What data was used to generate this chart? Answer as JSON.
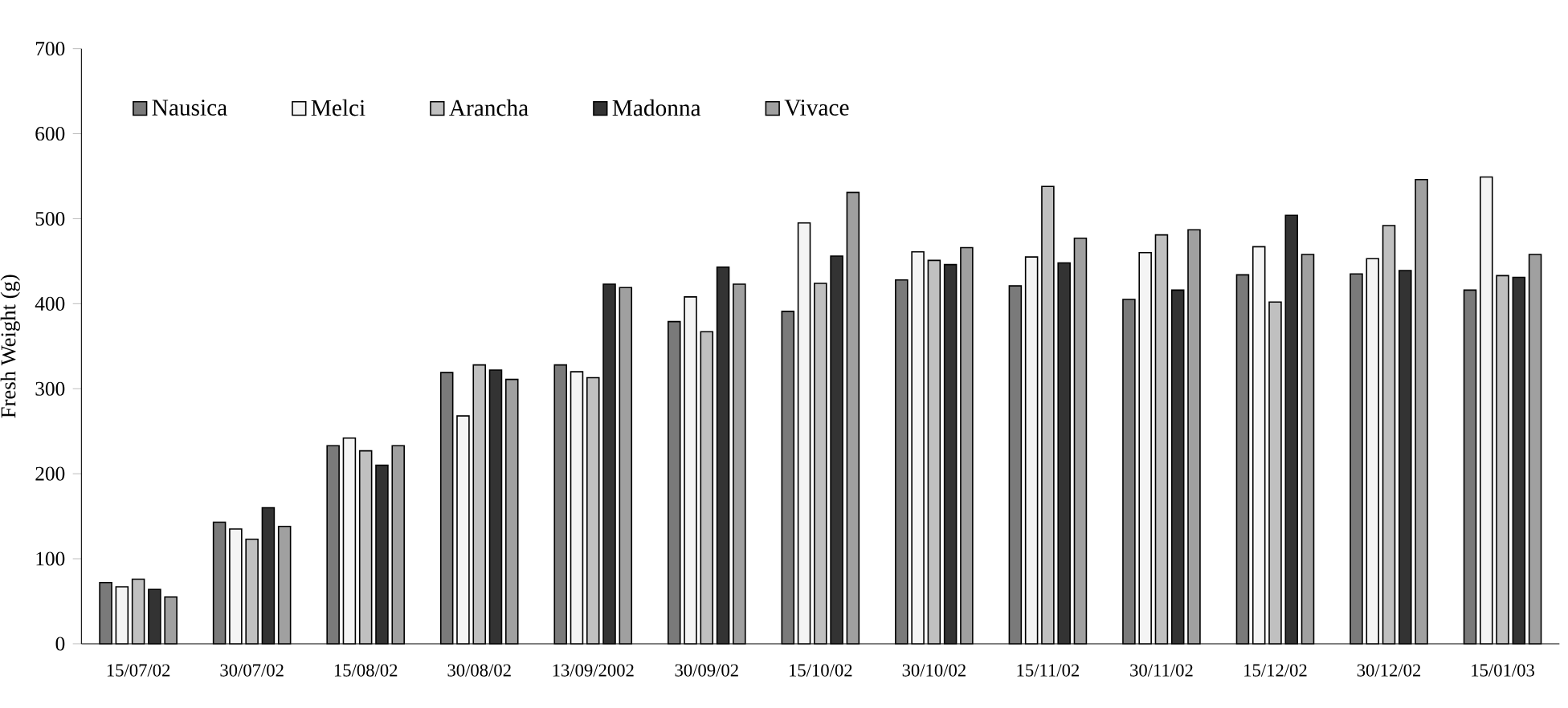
{
  "chart_data": {
    "type": "bar",
    "ylabel": "Fresh Weight (g)",
    "categories": [
      "15/07/02",
      "30/07/02",
      "15/08/02",
      "30/08/02",
      "13/09/2002",
      "30/09/02",
      "15/10/02",
      "30/10/02",
      "15/11/02",
      "30/11/02",
      "15/12/02",
      "30/12/02",
      "15/01/03"
    ],
    "series": [
      {
        "name": "Nausica",
        "color": "#7a7a7a",
        "values": [
          72,
          143,
          233,
          319,
          328,
          379,
          391,
          428,
          421,
          405,
          434,
          435,
          416
        ]
      },
      {
        "name": "Melci",
        "color": "#f4f4f4",
        "values": [
          67,
          135,
          242,
          268,
          320,
          408,
          495,
          461,
          455,
          460,
          467,
          453,
          549
        ]
      },
      {
        "name": "Arancha",
        "color": "#c0c0c0",
        "values": [
          76,
          123,
          227,
          328,
          313,
          367,
          424,
          451,
          538,
          481,
          402,
          492,
          433
        ]
      },
      {
        "name": "Madonna",
        "color": "#333333",
        "values": [
          64,
          160,
          210,
          322,
          423,
          443,
          456,
          446,
          448,
          416,
          504,
          439,
          431
        ]
      },
      {
        "name": "Vivace",
        "color": "#a0a0a0",
        "values": [
          55,
          138,
          233,
          311,
          419,
          423,
          531,
          466,
          477,
          487,
          458,
          546,
          458
        ]
      }
    ],
    "ylim": [
      0,
      700
    ],
    "yticks": [
      0,
      100,
      200,
      300,
      400,
      500,
      600,
      700
    ],
    "legend": "top left"
  }
}
